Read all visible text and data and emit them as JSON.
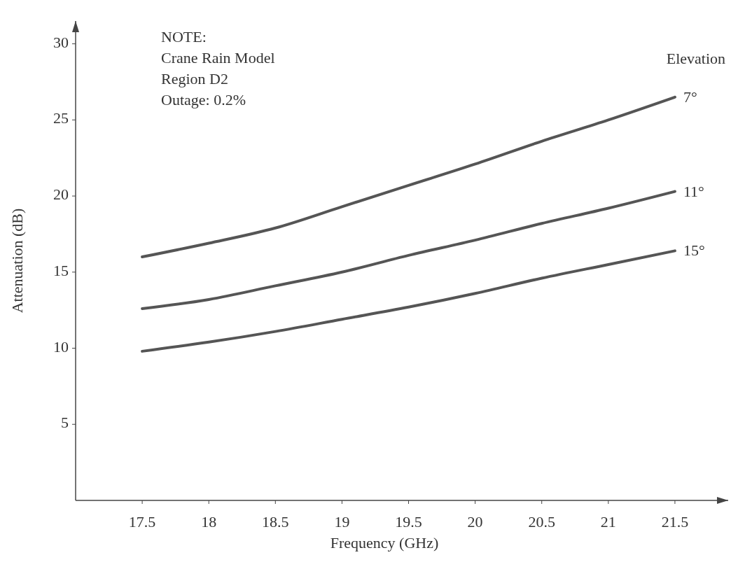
{
  "chart_data": {
    "type": "line",
    "xlabel": "Frequency (GHz)",
    "ylabel": "Attenuation (dB)",
    "legend_title": "Elevation",
    "x": [
      17.5,
      18,
      18.5,
      19,
      19.5,
      20,
      20.5,
      21,
      21.5
    ],
    "series": [
      {
        "name": "7°",
        "color": "#555555",
        "values": [
          16.0,
          16.9,
          17.9,
          19.3,
          20.7,
          22.1,
          23.6,
          25.0,
          26.5
        ]
      },
      {
        "name": "11°",
        "color": "#555555",
        "values": [
          12.6,
          13.2,
          14.1,
          15.0,
          16.1,
          17.1,
          18.2,
          19.2,
          20.3
        ]
      },
      {
        "name": "15°",
        "color": "#555555",
        "values": [
          9.8,
          10.4,
          11.1,
          11.9,
          12.7,
          13.6,
          14.6,
          15.5,
          16.4
        ]
      }
    ],
    "xlim": [
      17,
      21.9
    ],
    "ylim": [
      0,
      31.5
    ],
    "xticks": [
      17.5,
      18,
      18.5,
      19,
      19.5,
      20,
      20.5,
      21,
      21.5
    ],
    "yticks": [
      5,
      10,
      15,
      20,
      25,
      30
    ],
    "annotations": [
      "NOTE:",
      "Crane Rain Model",
      "Region D2",
      "Outage: 0.2%"
    ]
  }
}
